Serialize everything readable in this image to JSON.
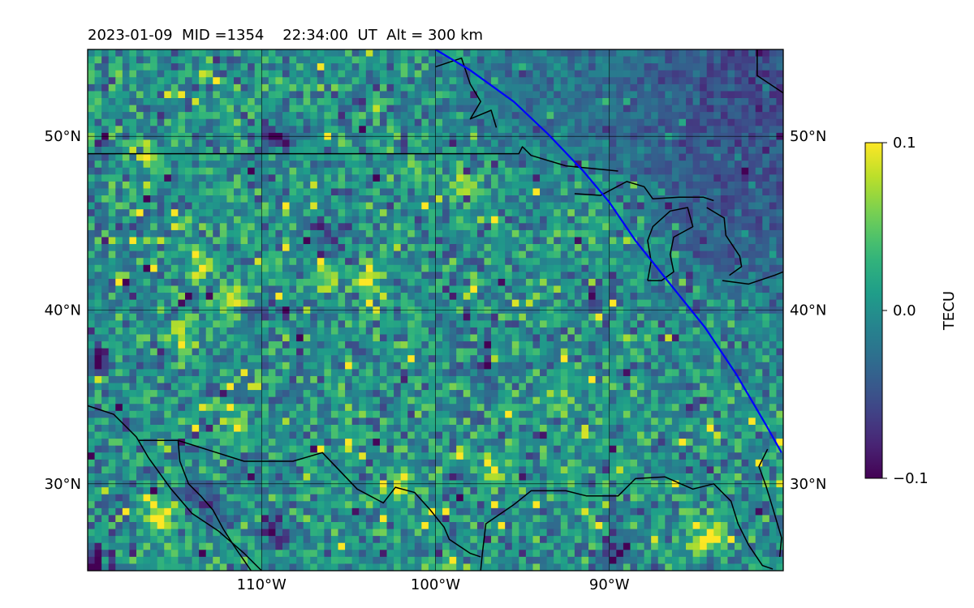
{
  "chart_data": {
    "type": "heatmap",
    "title": "2023-01-09  MID =1354    22:34:00  UT  Alt = 300 km",
    "title_parts": {
      "date": "2023-01-09",
      "mid_label": "MID =1354",
      "time": "22:34:00",
      "time_unit": "UT",
      "alt_label": "Alt = 300 km"
    },
    "map": {
      "lon_range": [
        -120,
        -80
      ],
      "lat_range": [
        25,
        55
      ],
      "lon_ticks": [
        {
          "value": -110,
          "label": "110°W"
        },
        {
          "value": -100,
          "label": "100°W"
        },
        {
          "value": -90,
          "label": "90°W"
        }
      ],
      "lat_ticks": [
        {
          "value": 50,
          "label": "50°N"
        },
        {
          "value": 40,
          "label": "40°N"
        },
        {
          "value": 30,
          "label": "30°N"
        }
      ],
      "gridlines": true,
      "overlay_line_color": "#0000ff"
    },
    "colorbar": {
      "label": "TECU",
      "vmin": -0.1,
      "vmax": 0.1,
      "ticks": [
        {
          "value": 0.1,
          "label": "0.1"
        },
        {
          "value": 0.0,
          "label": "0.0"
        },
        {
          "value": -0.1,
          "label": "−0.1"
        }
      ],
      "colormap": "viridis",
      "colormap_stops": [
        "#440154",
        "#482878",
        "#3e4a89",
        "#31688e",
        "#26828e",
        "#1f9e89",
        "#35b779",
        "#6ece58",
        "#b5de2b",
        "#fde725"
      ]
    },
    "features": {
      "hotspots": [
        {
          "lon": -111.5,
          "lat": 40.6,
          "value": 0.1
        },
        {
          "lon": -106.5,
          "lat": 41.8,
          "value": 0.09
        },
        {
          "lon": -104.0,
          "lat": 41.5,
          "value": 0.08
        },
        {
          "lon": -113.5,
          "lat": 42.5,
          "value": 0.08
        },
        {
          "lon": -111.5,
          "lat": 33.5,
          "value": 0.08
        },
        {
          "lon": -116.0,
          "lat": 28.3,
          "value": 0.09
        },
        {
          "lon": -84.5,
          "lat": 27.0,
          "value": 0.1
        },
        {
          "lon": -116.5,
          "lat": 48.9,
          "value": 0.09
        },
        {
          "lon": -98.5,
          "lat": 47.0,
          "value": 0.08
        },
        {
          "lon": -96.5,
          "lat": 30.8,
          "value": 0.08
        },
        {
          "lon": -102.0,
          "lat": 30.2,
          "value": 0.07
        },
        {
          "lon": -114.5,
          "lat": 38.5,
          "value": 0.07
        },
        {
          "lon": -93.0,
          "lat": 35.0,
          "value": 0.06
        }
      ],
      "coldspots": [
        {
          "lon": -119.5,
          "lat": 25.7,
          "value": -0.1
        },
        {
          "lon": -109.2,
          "lat": 50.0,
          "value": -0.09
        },
        {
          "lon": -113.5,
          "lat": 29.2,
          "value": -0.08
        },
        {
          "lon": -109.3,
          "lat": 27.3,
          "value": -0.08
        },
        {
          "lon": -119.6,
          "lat": 37.0,
          "value": -0.09
        },
        {
          "lon": -89.8,
          "lat": 26.0,
          "value": -0.08
        },
        {
          "lon": -110.5,
          "lat": 39.8,
          "value": -0.08
        },
        {
          "lon": -106.0,
          "lat": 44.5,
          "value": -0.07
        },
        {
          "lon": -97.0,
          "lat": 36.5,
          "value": -0.07
        },
        {
          "lon": -90.5,
          "lat": 41.0,
          "value": -0.06
        }
      ],
      "background_gradient": [
        {
          "lon": -82.5,
          "lat": 52.5,
          "value": -0.06
        },
        {
          "lon": -87.0,
          "lat": 53.0,
          "value": -0.04
        },
        {
          "lon": -81.5,
          "lat": 47.5,
          "value": -0.05
        },
        {
          "lon": -83.5,
          "lat": 44.5,
          "value": -0.03
        },
        {
          "lon": -90.0,
          "lat": 52.0,
          "value": -0.02
        },
        {
          "lon": -95.0,
          "lat": 53.0,
          "value": -0.02
        }
      ]
    },
    "overlay_track": [
      [
        -100.0,
        55.0
      ],
      [
        -98.0,
        53.8
      ],
      [
        -95.5,
        52.0
      ],
      [
        -93.5,
        50.1
      ],
      [
        -91.5,
        48.0
      ],
      [
        -90.0,
        46.2
      ],
      [
        -88.5,
        44.0
      ],
      [
        -86.5,
        41.5
      ],
      [
        -84.5,
        39.0
      ],
      [
        -82.7,
        36.3
      ],
      [
        -81.0,
        33.4
      ],
      [
        -80.1,
        31.8
      ]
    ]
  }
}
